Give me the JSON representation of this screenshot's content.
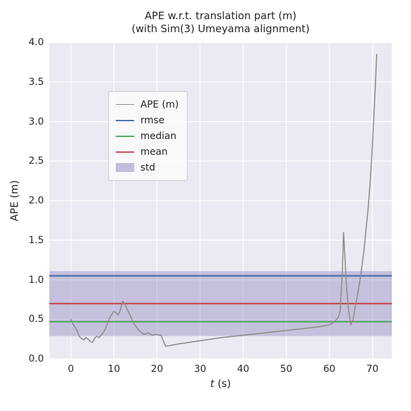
{
  "figure": {
    "title_line1": "APE w.r.t. translation part (m)",
    "title_line2": "(with Sim(3) Umeyama alignment)"
  },
  "labels": {
    "xlabel_italic": "t",
    "xlabel_suffix": " (s)"
  },
  "colors": {
    "figure_bg": "#ffffff",
    "axes_bg": "#eaeaf2",
    "grid": "#ffffff",
    "text": "#262626",
    "ape_line": "#8c8c8c",
    "rmse": "#4c72b0",
    "median": "#55a868",
    "mean": "#c44e52",
    "std": "#8172b2"
  },
  "chart_data": {
    "type": "line",
    "title": "APE w.r.t. translation part (m)\n(with Sim(3) Umeyama alignment)",
    "xlabel": "t (s)",
    "ylabel": "APE (m)",
    "xlim": [
      -5,
      74.5
    ],
    "ylim": [
      0,
      4
    ],
    "xtick_values": [
      0,
      10,
      20,
      30,
      40,
      50,
      60,
      70
    ],
    "xtick_labels": [
      "0",
      "10",
      "20",
      "30",
      "40",
      "50",
      "60",
      "70"
    ],
    "ytick_values": [
      0,
      0.5,
      1,
      1.5,
      2,
      2.5,
      3,
      3.5,
      4
    ],
    "ytick_labels": [
      "0.0",
      "0.5",
      "1.0",
      "1.5",
      "2.0",
      "2.5",
      "3.0",
      "3.5",
      "4.0"
    ],
    "grid": true,
    "legend_position": "upper-left",
    "series": [
      {
        "name": "std",
        "kind": "band",
        "color": "#8172b2",
        "opacity": 0.35,
        "low": 0.29,
        "high": 1.11
      },
      {
        "name": "rmse",
        "kind": "hline",
        "color": "#4c72b0",
        "width": 2.4,
        "value": 1.05
      },
      {
        "name": "median",
        "kind": "hline",
        "color": "#55a868",
        "width": 2.4,
        "value": 0.47
      },
      {
        "name": "mean",
        "kind": "hline",
        "color": "#c44e52",
        "width": 2.4,
        "value": 0.7
      },
      {
        "name": "APE (m)",
        "kind": "line",
        "color": "#8c8c8c",
        "width": 1.6,
        "x": [
          0,
          0.5,
          1,
          1.5,
          2,
          2.5,
          3,
          3.5,
          4,
          4.5,
          5,
          5.5,
          6,
          6.5,
          7,
          7.5,
          8,
          8.5,
          9,
          9.5,
          10,
          10.5,
          11,
          11.5,
          12,
          12.5,
          13,
          13.5,
          14,
          14.5,
          15,
          15.5,
          16,
          16.5,
          17,
          17.5,
          18,
          18.5,
          19,
          19.5,
          20,
          20.5,
          21,
          21.5,
          22,
          25,
          30,
          35,
          40,
          45,
          50,
          55,
          58,
          60,
          61,
          62,
          62.5,
          63,
          63.3,
          63.8,
          64,
          64.5,
          65,
          65.5,
          66,
          67,
          68,
          69,
          69.5,
          70,
          70.5,
          71
        ],
        "y": [
          0.5,
          0.44,
          0.4,
          0.35,
          0.28,
          0.26,
          0.24,
          0.27,
          0.25,
          0.22,
          0.21,
          0.26,
          0.29,
          0.27,
          0.3,
          0.33,
          0.38,
          0.45,
          0.52,
          0.56,
          0.6,
          0.58,
          0.56,
          0.62,
          0.73,
          0.7,
          0.64,
          0.58,
          0.52,
          0.46,
          0.42,
          0.38,
          0.35,
          0.33,
          0.31,
          0.32,
          0.33,
          0.31,
          0.3,
          0.31,
          0.31,
          0.3,
          0.3,
          0.22,
          0.16,
          0.19,
          0.23,
          0.27,
          0.3,
          0.33,
          0.36,
          0.39,
          0.41,
          0.43,
          0.46,
          0.52,
          0.6,
          1.1,
          1.6,
          1.1,
          0.9,
          0.6,
          0.43,
          0.5,
          0.65,
          0.95,
          1.35,
          1.9,
          2.25,
          2.7,
          3.25,
          3.85
        ]
      }
    ],
    "legend_order": [
      "APE (m)",
      "rmse",
      "median",
      "mean",
      "std"
    ]
  }
}
